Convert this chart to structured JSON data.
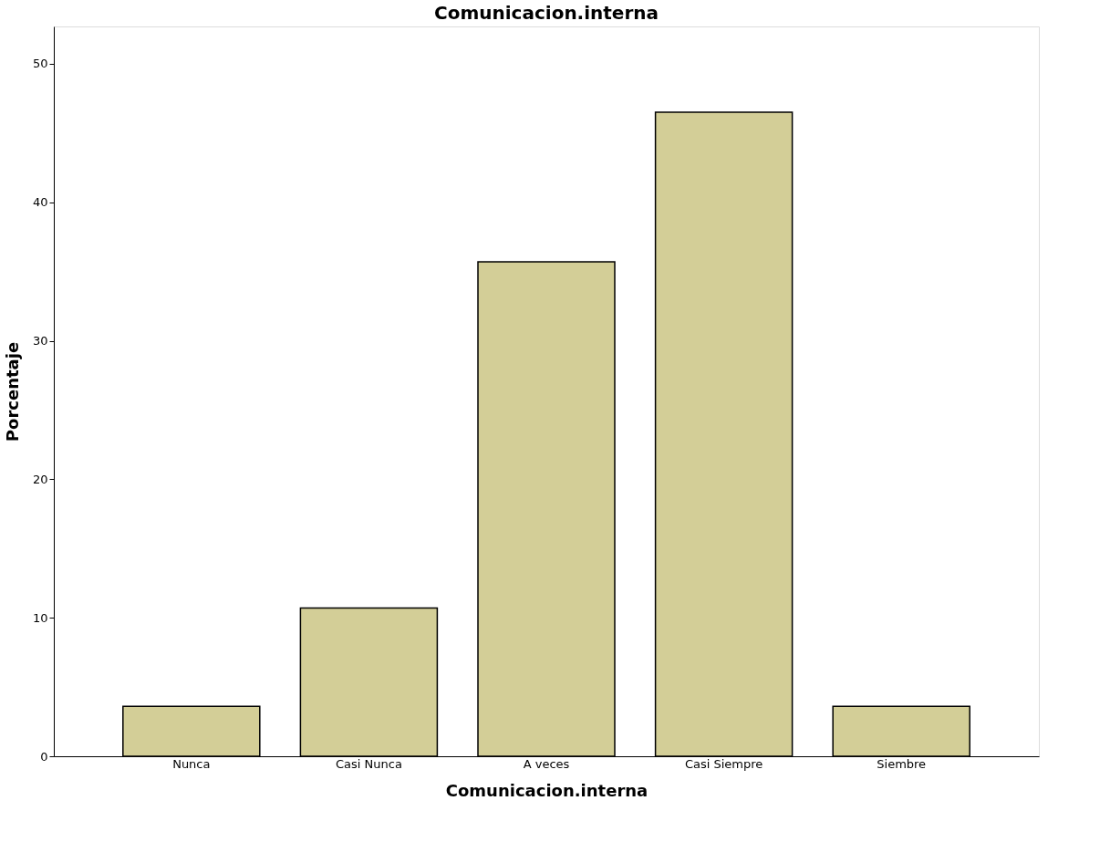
{
  "chart_data": {
    "type": "bar",
    "title": "Comunicacion.interna",
    "xlabel": "Comunicacion.interna",
    "ylabel": "Porcentaje",
    "categories": [
      "Nunca",
      "Casi Nunca",
      "A veces",
      "Casi Siempre",
      "Siembre"
    ],
    "values": [
      3.6,
      10.7,
      35.7,
      46.5,
      3.6
    ],
    "color": "#d3ce97",
    "ylim": [
      0,
      52.7
    ],
    "yticks": [
      0,
      10,
      20,
      30,
      40,
      50
    ],
    "grid": false
  }
}
